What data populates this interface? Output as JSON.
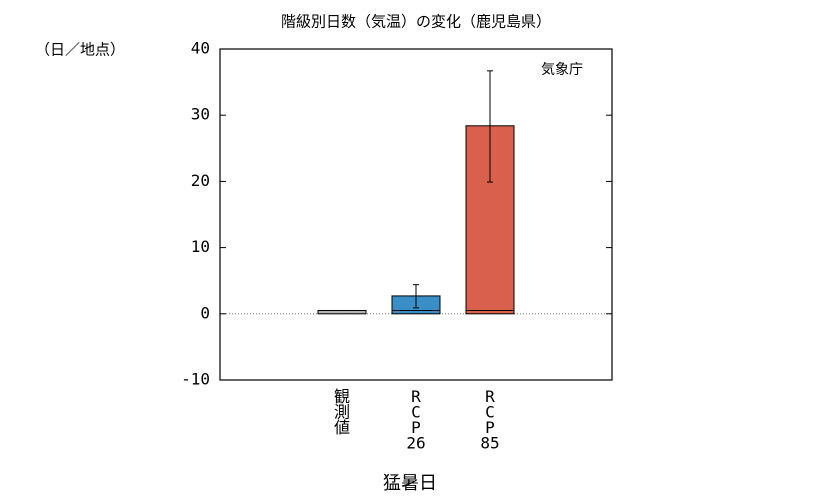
{
  "chart_data": {
    "type": "bar",
    "title": "階級別日数（気温）の変化（鹿児島県）",
    "y_unit": "（日／地点）",
    "annotation": "気象庁",
    "xlabel": "猛暑日",
    "categories": [
      "観測値",
      "RCP26",
      "RCP85"
    ],
    "values": [
      0.5,
      2.7,
      28.4
    ],
    "colors": [
      "#b4b4b4",
      "#3a8ec8",
      "#d9604c"
    ],
    "error_low": [
      null,
      0.9,
      19.9
    ],
    "error_high": [
      null,
      4.4,
      36.7
    ],
    "ylim": [
      -10,
      40
    ],
    "yticks": [
      -10,
      0,
      10,
      20,
      30,
      40
    ]
  }
}
